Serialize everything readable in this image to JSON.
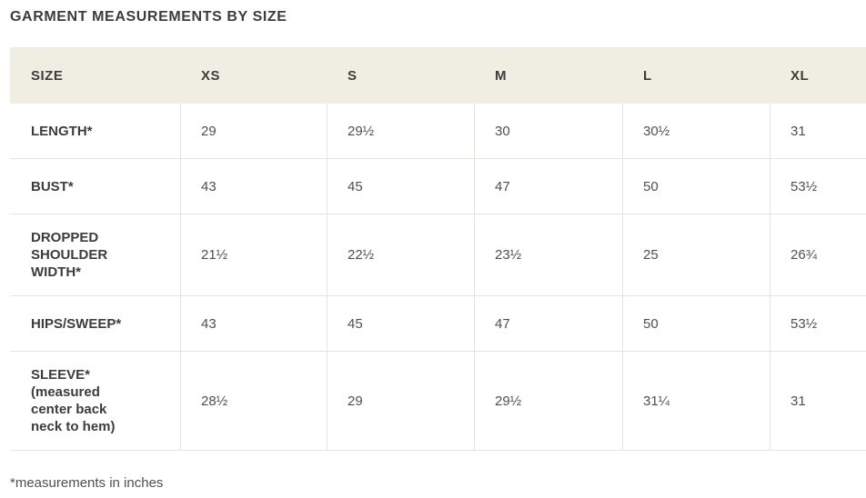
{
  "page": {
    "title": "GARMENT MEASUREMENTS BY SIZE",
    "footnote": "*measurements in inches"
  },
  "table": {
    "columns": [
      "SIZE",
      "XS",
      "S",
      "M",
      "L",
      "XL"
    ],
    "rows": [
      {
        "label": "LENGTH*",
        "values": [
          "29",
          "29½",
          "30",
          "30½",
          "31"
        ]
      },
      {
        "label": "BUST*",
        "values": [
          "43",
          "45",
          "47",
          "50",
          "53½"
        ]
      },
      {
        "label": "DROPPED SHOULDER WIDTH*",
        "values": [
          "21½",
          "22½",
          "23½",
          "25",
          "26¾"
        ]
      },
      {
        "label": "HIPS/SWEEP*",
        "values": [
          "43",
          "45",
          "47",
          "50",
          "53½"
        ]
      },
      {
        "label": "SLEEVE* (measured center back neck to hem)",
        "values": [
          "28½",
          "29",
          "29½",
          "31¼",
          "31"
        ]
      }
    ]
  },
  "colors": {
    "header_bg": "#f0ede3",
    "border": "#e6e4df",
    "heading_text": "#3c3c3c",
    "value_text": "#4f4f4f",
    "page_bg": "#ffffff"
  }
}
